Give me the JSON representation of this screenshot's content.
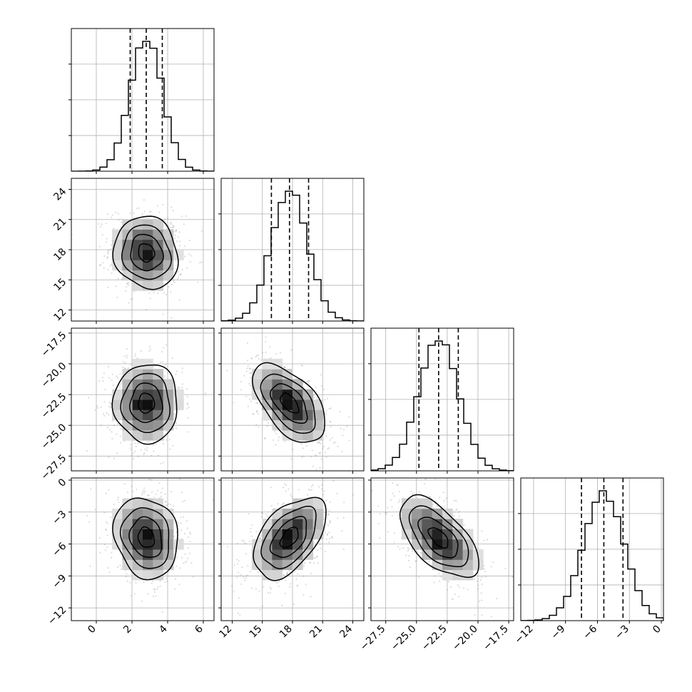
{
  "chart_data": {
    "type": "corner",
    "parameters": [
      {
        "index": 0,
        "mean": 2.8,
        "sigma": 0.9,
        "quantiles": [
          1.9,
          2.8,
          3.7
        ],
        "range": [
          -1.4,
          6.6
        ],
        "ticks": [
          0,
          2,
          4,
          6
        ],
        "tick_labels": [
          "0",
          "2",
          "4",
          "6"
        ]
      },
      {
        "index": 1,
        "mean": 17.7,
        "sigma": 1.8,
        "quantiles": [
          15.9,
          17.7,
          19.6
        ],
        "range": [
          10.9,
          25.1
        ],
        "ticks": [
          12,
          15,
          18,
          21,
          24
        ],
        "tick_labels": [
          "12",
          "15",
          "18",
          "21",
          "24"
        ]
      },
      {
        "index": 2,
        "mean": -23.2,
        "sigma": 1.6,
        "quantiles": [
          -24.8,
          -23.2,
          -21.6
        ],
        "range": [
          -28.7,
          -17.1
        ],
        "ticks": [
          -27.5,
          -25.0,
          -22.5,
          -20.0,
          -17.5
        ],
        "tick_labels": [
          "−27.5",
          "−25.0",
          "−22.5",
          "−20.0",
          "−17.5"
        ]
      },
      {
        "index": 3,
        "mean": -5.4,
        "sigma": 1.9,
        "quantiles": [
          -7.5,
          -5.4,
          -3.6
        ],
        "range": [
          -13.2,
          0.2
        ],
        "ticks": [
          -12,
          -9,
          -6,
          -3,
          0
        ],
        "tick_labels": [
          "−12",
          "−9",
          "−6",
          "−3",
          "0"
        ]
      }
    ],
    "correlations": [
      {
        "pair": [
          0,
          1
        ],
        "rho": -0.1
      },
      {
        "pair": [
          0,
          2
        ],
        "rho": 0.0
      },
      {
        "pair": [
          1,
          2
        ],
        "rho": -0.55
      },
      {
        "pair": [
          0,
          3
        ],
        "rho": -0.15
      },
      {
        "pair": [
          1,
          3
        ],
        "rho": 0.5
      },
      {
        "pair": [
          2,
          3
        ],
        "rho": -0.6
      }
    ],
    "contour_levels_sigma": [
      0.5,
      1.0,
      1.5,
      2.0
    ],
    "histogram_bins": 20,
    "grid": true,
    "color": "#000000",
    "scatter_color": "#808080"
  }
}
